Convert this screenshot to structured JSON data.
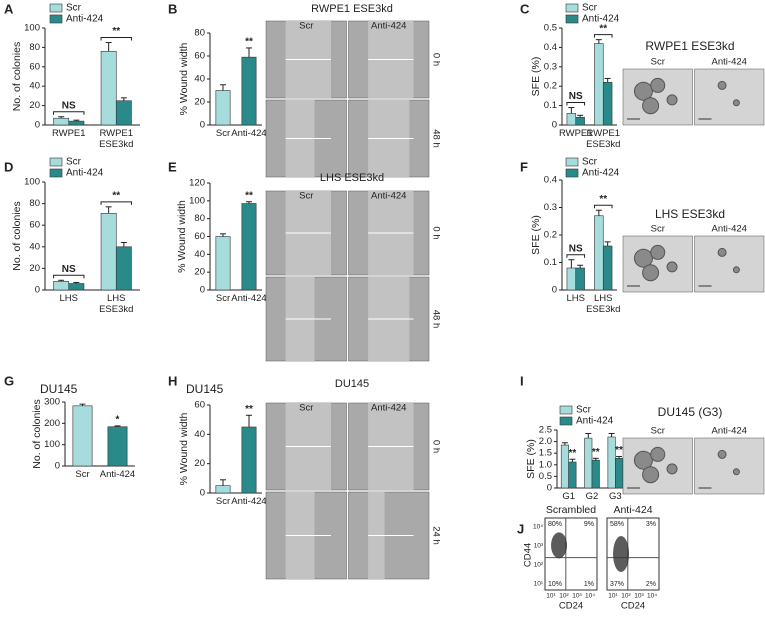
{
  "chart_data": [
    {
      "type": "bar",
      "panel": "A",
      "ylabel": "No. of colonies",
      "categories": [
        "RWPE1",
        "RWPE1 ESE3kd"
      ],
      "ylim": [
        0,
        100
      ],
      "yticks": [
        0,
        20,
        40,
        60,
        80,
        100
      ],
      "annotations": [
        "NS",
        "**"
      ],
      "series": [
        {
          "name": "Scr",
          "color": "#a6dcdc",
          "values": [
            7,
            76
          ],
          "errors": [
            1.5,
            9
          ]
        },
        {
          "name": "Anti-424",
          "color": "#2a8a8a",
          "values": [
            4,
            25
          ],
          "errors": [
            1,
            3
          ]
        }
      ]
    },
    {
      "type": "bar",
      "panel": "B",
      "ylabel": "% Wound width",
      "categories": [
        "Scr",
        "Anti-424"
      ],
      "values": [
        30,
        59
      ],
      "errors": [
        5,
        8
      ],
      "colors": [
        "#a6dcdc",
        "#2a8a8a"
      ],
      "ylim": [
        0,
        80
      ],
      "yticks": [
        0,
        20,
        40,
        60,
        80
      ],
      "annotations": [
        null,
        "**"
      ]
    },
    {
      "type": "bar",
      "panel": "C",
      "ylabel": "SFE (%)",
      "categories": [
        "RWPE1",
        "RWPE1 ESE3kd"
      ],
      "ylim": [
        0,
        0.5
      ],
      "yticks": [
        0,
        0.1,
        0.2,
        0.3,
        0.4,
        0.5
      ],
      "annotations": [
        "NS",
        "**"
      ],
      "series": [
        {
          "name": "Scr",
          "color": "#a6dcdc",
          "values": [
            0.06,
            0.42
          ],
          "errors": [
            0.03,
            0.02
          ]
        },
        {
          "name": "Anti-424",
          "color": "#2a8a8a",
          "values": [
            0.04,
            0.22
          ],
          "errors": [
            0.01,
            0.02
          ]
        }
      ]
    },
    {
      "type": "bar",
      "panel": "D",
      "ylabel": "No. of colonies",
      "categories": [
        "LHS",
        "LHS ESE3kd"
      ],
      "ylim": [
        0,
        100
      ],
      "yticks": [
        0,
        20,
        40,
        60,
        80,
        100
      ],
      "annotations": [
        "NS",
        "**"
      ],
      "series": [
        {
          "name": "Scr",
          "color": "#a6dcdc",
          "values": [
            8,
            71
          ],
          "errors": [
            1,
            6
          ]
        },
        {
          "name": "Anti-424",
          "color": "#2a8a8a",
          "values": [
            6,
            40
          ],
          "errors": [
            1,
            4
          ]
        }
      ]
    },
    {
      "type": "bar",
      "panel": "E",
      "ylabel": "% Wound width",
      "categories": [
        "Scr",
        "Anti-424"
      ],
      "values": [
        60,
        97
      ],
      "errors": [
        3,
        2
      ],
      "colors": [
        "#a6dcdc",
        "#2a8a8a"
      ],
      "ylim": [
        0,
        120
      ],
      "yticks": [
        0,
        20,
        40,
        60,
        80,
        100,
        120
      ],
      "annotations": [
        null,
        "**"
      ]
    },
    {
      "type": "bar",
      "panel": "F",
      "ylabel": "SFE (%)",
      "categories": [
        "LHS",
        "LHS ESE3kd"
      ],
      "ylim": [
        0,
        0.4
      ],
      "yticks": [
        0,
        0.1,
        0.2,
        0.3,
        0.4
      ],
      "annotations": [
        "NS",
        "**"
      ],
      "series": [
        {
          "name": "Scr",
          "color": "#a6dcdc",
          "values": [
            0.08,
            0.27
          ],
          "errors": [
            0.03,
            0.02
          ]
        },
        {
          "name": "Anti-424",
          "color": "#2a8a8a",
          "values": [
            0.08,
            0.16
          ],
          "errors": [
            0.01,
            0.015
          ]
        }
      ]
    },
    {
      "type": "bar",
      "panel": "G",
      "title": "DU145",
      "ylabel": "No. of colonies",
      "categories": [
        "Scr",
        "Anti-424"
      ],
      "values": [
        282,
        184
      ],
      "errors": [
        8,
        4
      ],
      "colors": [
        "#a6dcdc",
        "#2a8a8a"
      ],
      "ylim": [
        0,
        300
      ],
      "yticks": [
        0,
        100,
        200,
        300
      ],
      "annotations": [
        null,
        "*"
      ]
    },
    {
      "type": "bar",
      "panel": "H",
      "title": "DU145",
      "ylabel": "% Wound width",
      "categories": [
        "Scr",
        "Anti-424"
      ],
      "values": [
        5,
        45
      ],
      "errors": [
        4,
        8
      ],
      "colors": [
        "#a6dcdc",
        "#2a8a8a"
      ],
      "ylim": [
        0,
        60
      ],
      "yticks": [
        0,
        20,
        40,
        60
      ],
      "annotations": [
        null,
        "**"
      ]
    },
    {
      "type": "bar",
      "panel": "I",
      "ylabel": "SFE (%)",
      "categories": [
        "G1",
        "G2",
        "G3"
      ],
      "ylim": [
        0,
        2.5
      ],
      "yticks": [
        0,
        0.5,
        {
          "value": 1,
          "label": "1.0"
        },
        1.5,
        {
          "value": 2,
          "label": "2.0"
        },
        2.5
      ],
      "series": [
        {
          "name": "Scr",
          "color": "#a6dcdc",
          "values": [
            1.85,
            2.15,
            2.2
          ],
          "errors": [
            0.1,
            0.2,
            0.15
          ]
        },
        {
          "name": "Anti-424",
          "color": "#2a8a8a",
          "values": [
            1.12,
            1.2,
            1.28
          ],
          "errors": [
            0.12,
            0.08,
            0.08
          ],
          "annotations": [
            "**",
            "**",
            "**"
          ]
        }
      ]
    }
  ],
  "images": [
    {
      "title": "RWPE1 ESE3kd",
      "columns": [
        "Scr",
        "Anti-424"
      ],
      "rows": [
        "0 h",
        "48 h"
      ]
    },
    {
      "title": "LHS ESE3kd",
      "columns": [
        "Scr",
        "Anti-424"
      ],
      "rows": [
        "0 h",
        "48 h"
      ]
    },
    {
      "title": "DU145",
      "columns": [
        "Scr",
        "Anti-424"
      ],
      "rows": [
        "0 h",
        "24 h"
      ]
    },
    {
      "title": "RWPE1 ESE3kd",
      "columns": [
        "Scr",
        "Anti-424"
      ]
    },
    {
      "title": "LHS ESE3kd",
      "columns": [
        "Scr",
        "Anti-424"
      ]
    },
    {
      "title": "DU145 (G3)",
      "columns": [
        "Scr",
        "Anti-424"
      ]
    }
  ],
  "flow": {
    "panel": "J",
    "ylabel": "CD44",
    "xlabel": "CD24",
    "ticks": [
      "10¹",
      "10²",
      "10³",
      "10⁴"
    ],
    "plots": [
      {
        "title": "Scrambled",
        "quadrants": [
          "80%",
          "9%",
          "10%",
          "1%"
        ]
      },
      {
        "title": "Anti-424",
        "quadrants": [
          "58%",
          "3%",
          "37%",
          "2%"
        ]
      }
    ]
  }
}
